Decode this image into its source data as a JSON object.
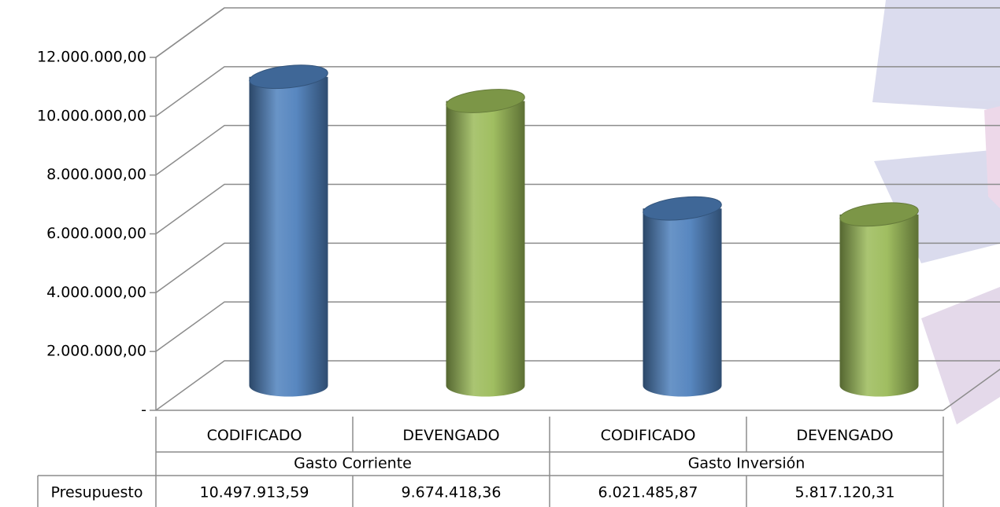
{
  "chart_data": {
    "type": "bar3d",
    "categories": [
      "CODIFICADO",
      "DEVENGADO",
      "CODIFICADO",
      "DEVENGADO"
    ],
    "groups": [
      {
        "label": "Gasto Corriente",
        "span": 2
      },
      {
        "label": "Gasto Inversión",
        "span": 2
      }
    ],
    "series": [
      {
        "name": "Presupuesto",
        "values": [
          10497913.59,
          9674418.36,
          6021485.87,
          5817120.31
        ],
        "value_labels": [
          "10.497.913,59",
          "9.674.418,36",
          "6.021.485,87",
          "5.817.120,31"
        ],
        "colors": [
          "#4f81bd",
          "#9bbb59",
          "#4f81bd",
          "#9bbb59"
        ]
      }
    ],
    "ylim": [
      0,
      12000000
    ],
    "yticks": [
      {
        "value": 0,
        "label": "-"
      },
      {
        "value": 2000000,
        "label": "2.000.000,00"
      },
      {
        "value": 4000000,
        "label": "4.000.000,00"
      },
      {
        "value": 6000000,
        "label": "6.000.000,00"
      },
      {
        "value": 8000000,
        "label": "8.000.000,00"
      },
      {
        "value": 10000000,
        "label": "10.000.000,00"
      },
      {
        "value": 12000000,
        "label": "12.000.000,00"
      }
    ],
    "grid": true
  }
}
